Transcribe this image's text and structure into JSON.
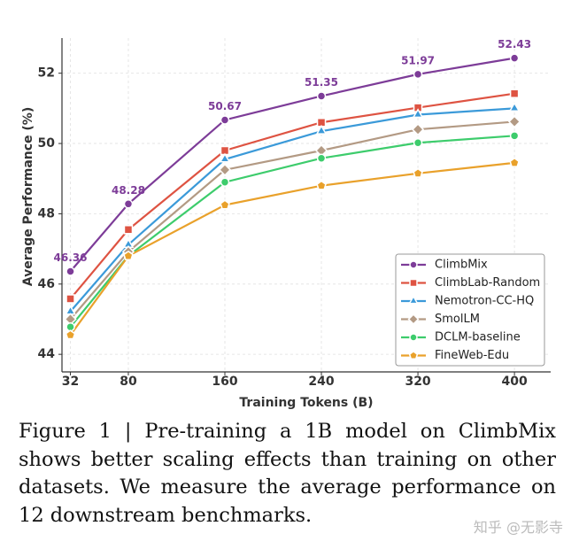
{
  "chart_data": {
    "type": "line",
    "xlabel": "Training Tokens (B)",
    "ylabel": "Average Performance (%)",
    "x": [
      32,
      80,
      160,
      240,
      320,
      400
    ],
    "xlim": [
      25,
      430
    ],
    "xticks": [
      32,
      80,
      160,
      240,
      320,
      400
    ],
    "ylim": [
      43.5,
      53
    ],
    "yticks": [
      44,
      46,
      48,
      50,
      52
    ],
    "grid": true,
    "legend": "lower right",
    "series": [
      {
        "name": "ClimbMix",
        "color": "#7d3c98",
        "marker": "circle",
        "values": [
          46.36,
          48.28,
          50.67,
          51.35,
          51.97,
          52.43
        ],
        "show_labels": true
      },
      {
        "name": "ClimbLab-Random",
        "color": "#de5342",
        "marker": "square",
        "values": [
          45.58,
          47.55,
          49.8,
          50.6,
          51.02,
          51.42
        ]
      },
      {
        "name": "Nemotron-CC-HQ",
        "color": "#3b9ad9",
        "marker": "triangle",
        "values": [
          45.22,
          47.12,
          49.55,
          50.35,
          50.82,
          51.0
        ]
      },
      {
        "name": "SmolLM",
        "color": "#b39a84",
        "marker": "diamond",
        "values": [
          45.0,
          46.92,
          49.25,
          49.8,
          50.4,
          50.62
        ]
      },
      {
        "name": "DCLM-baseline",
        "color": "#3dcc6c",
        "marker": "circle",
        "values": [
          44.78,
          46.8,
          48.9,
          49.58,
          50.02,
          50.22
        ]
      },
      {
        "name": "FineWeb-Edu",
        "color": "#e9a12b",
        "marker": "pentagon",
        "values": [
          44.55,
          46.8,
          48.25,
          48.8,
          49.15,
          49.45
        ]
      }
    ]
  },
  "caption": "Figure 1 | Pre-training a 1B model on ClimbMix shows better scaling effects than training on other datasets. We measure the average performance on 12 downstream benchmarks.",
  "watermark": "知乎 @无影寺"
}
